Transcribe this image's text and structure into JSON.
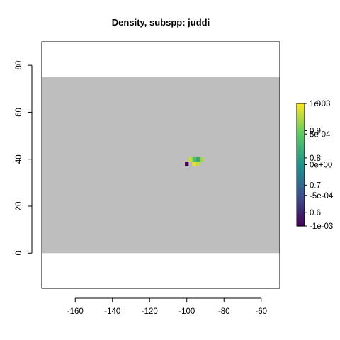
{
  "chart_data": {
    "type": "heatmap",
    "title": "Density, subspp: juddi",
    "xlabel": "",
    "ylabel": "",
    "xlim": [
      -178,
      -50
    ],
    "ylim": [
      -15,
      90
    ],
    "x_ticks": [
      -160,
      -140,
      -120,
      -100,
      -80,
      -60
    ],
    "y_ticks": [
      0,
      20,
      40,
      60,
      80
    ],
    "x_tick_labels": [
      "-160",
      "-140",
      "-120",
      "-100",
      "-80",
      "-60"
    ],
    "y_tick_labels": [
      "0",
      "20",
      "40",
      "60",
      "80"
    ],
    "grid": false,
    "background_region": {
      "xmin": -178,
      "xmax": -50,
      "ymin": 0,
      "ymax": 75,
      "color": "#bebebe"
    },
    "cell_size": 2,
    "cells": [
      {
        "x": -100,
        "y": 38,
        "value": 0.55
      },
      {
        "x": -98,
        "y": 40,
        "value": 0.96
      },
      {
        "x": -96,
        "y": 40,
        "value": 0.87
      },
      {
        "x": -94,
        "y": 40,
        "value": 0.82
      },
      {
        "x": -92,
        "y": 40,
        "value": 0.93
      },
      {
        "x": -96,
        "y": 38,
        "value": 0.98
      },
      {
        "x": -94,
        "y": 38,
        "value": 0.96
      }
    ],
    "colorbar": {
      "colors": [
        "#440154",
        "#3b528b",
        "#21908c",
        "#5dc963",
        "#fde725"
      ],
      "placement": "right",
      "inner_scale": {
        "min": 0.55,
        "max": 1.0,
        "labels": [
          "1.0",
          "0.9",
          "0.8",
          "0.7",
          "0.6"
        ],
        "values": [
          1.0,
          0.9,
          0.8,
          0.7,
          0.6
        ]
      },
      "outer_scale": {
        "min": -0.001,
        "max": 0.001,
        "labels": [
          "1e-03",
          "5e-04",
          "0e+00",
          "-5e-04",
          "-1e-03"
        ],
        "values": [
          0.001,
          0.0005,
          0,
          -0.0005,
          -0.001
        ]
      }
    }
  }
}
